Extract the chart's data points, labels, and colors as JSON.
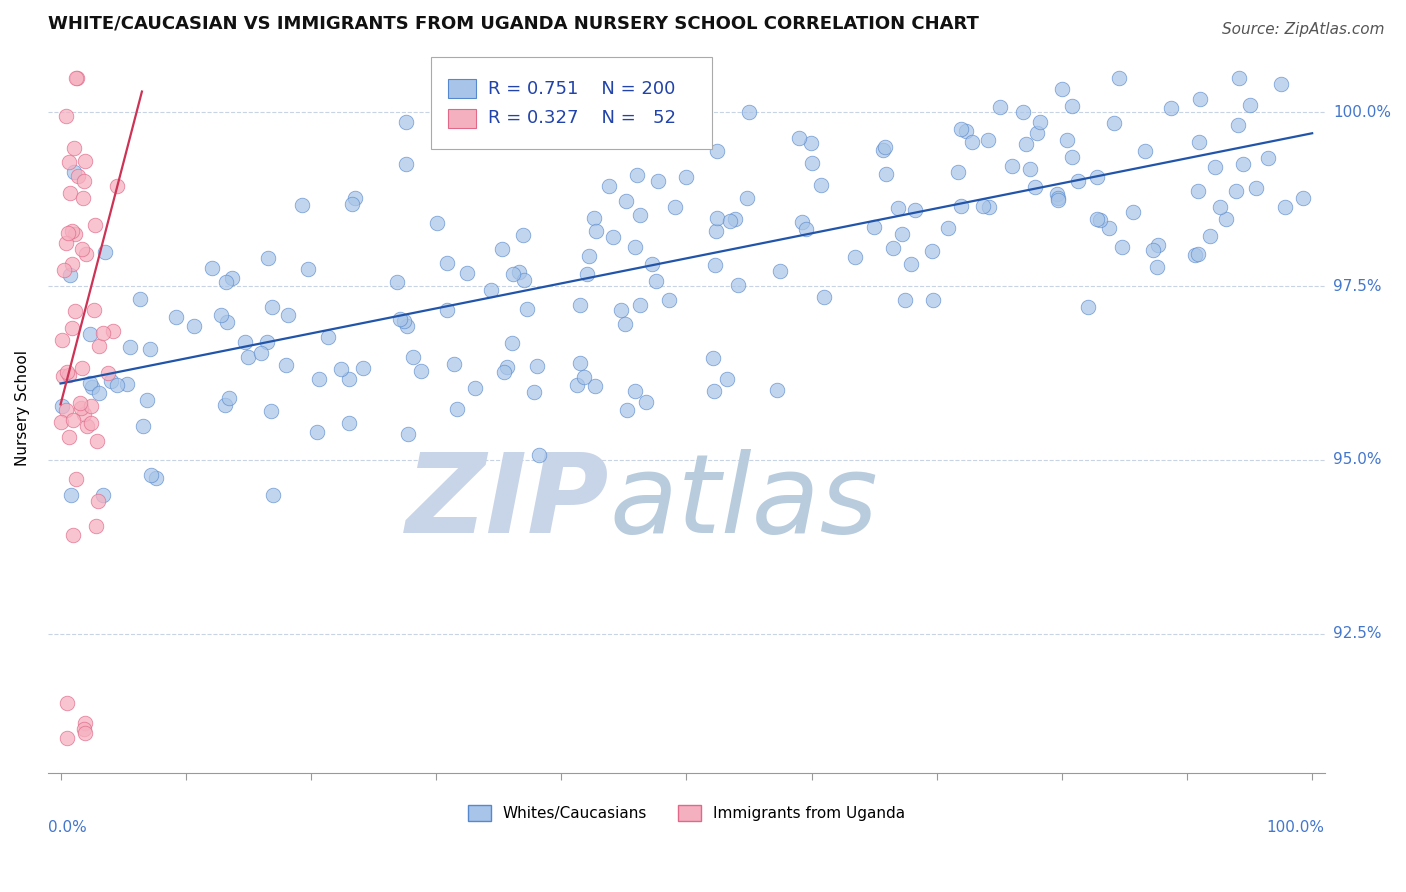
{
  "title": "WHITE/CAUCASIAN VS IMMIGRANTS FROM UGANDA NURSERY SCHOOL CORRELATION CHART",
  "source": "Source: ZipAtlas.com",
  "ylabel": "Nursery School",
  "ylim": [
    90.5,
    101.0
  ],
  "xlim": [
    -0.01,
    1.01
  ],
  "yticks": [
    92.5,
    95.0,
    97.5,
    100.0
  ],
  "blue_color": "#a8c4e8",
  "pink_color": "#f5b0c0",
  "blue_edge": "#5588cc",
  "pink_edge": "#e06888",
  "trend_blue": "#2255aa",
  "trend_pink": "#cc3355",
  "watermark_zip_color": "#c8d4e8",
  "watermark_atlas_color": "#b8ccde",
  "title_fontsize": 13,
  "source_fontsize": 11,
  "axis_label_fontsize": 11,
  "legend_fontsize": 13,
  "tick_fontsize": 11,
  "blue_N": 200,
  "pink_N": 52,
  "blue_trend_x": [
    0.0,
    1.0
  ],
  "blue_trend_y": [
    96.1,
    99.7
  ],
  "pink_trend_x": [
    0.0,
    0.065
  ],
  "pink_trend_y": [
    95.8,
    100.3
  ]
}
